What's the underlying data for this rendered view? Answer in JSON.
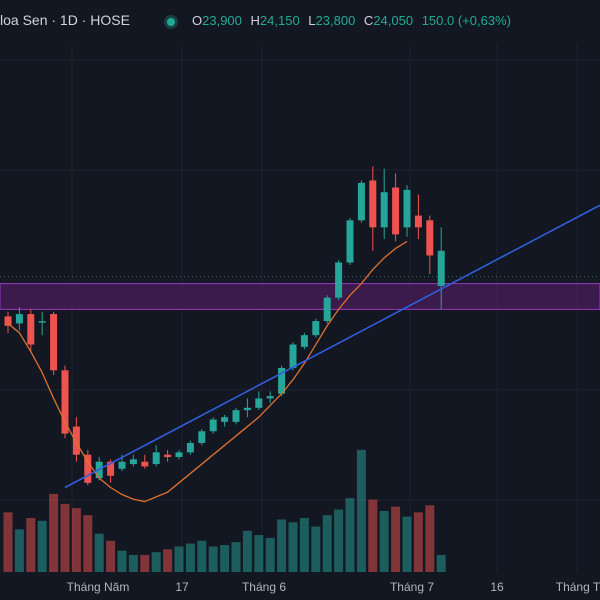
{
  "header": {
    "title": "loa Sen · 1D · HOSE",
    "status_icon": "live-dot-icon",
    "ohlc": {
      "o_label": "O",
      "o_value": "23,900",
      "h_label": "H",
      "h_value": "24,150",
      "l_label": "L",
      "l_value": "23,800",
      "c_label": "C",
      "c_value": "24,050",
      "change": "150.0 (+0,63%)"
    }
  },
  "colors": {
    "background": "#131722",
    "up": "#26a69a",
    "down": "#ef5350",
    "ma": "#e0702e",
    "trendline": "#2f5fe0",
    "zone_fill": "#5b1f6e",
    "zone_border": "#9b36c4"
  },
  "chart_data": {
    "type": "candlestick",
    "x_tick_labels": [
      "Tháng Năm",
      "17",
      "Tháng 6",
      "Tháng 7",
      "16",
      "Tháng T"
    ],
    "y_range": [
      22560,
      25120
    ],
    "ma_series": [
      23740,
      23700,
      23620,
      23530,
      23420,
      23320,
      23230,
      23150,
      23080,
      23040,
      23010,
      22990,
      22980,
      23000,
      23020,
      23060,
      23100,
      23140,
      23180,
      23220,
      23260,
      23300,
      23340,
      23390,
      23440,
      23500,
      23570,
      23650,
      23730,
      23800,
      23860,
      23910,
      23970,
      24020,
      24060,
      24090
    ],
    "candles": [
      {
        "o": 23770,
        "h": 23790,
        "l": 23700,
        "c": 23730,
        "v": 0.42
      },
      {
        "o": 23740,
        "h": 23810,
        "l": 23710,
        "c": 23780,
        "v": 0.3
      },
      {
        "o": 23780,
        "h": 23800,
        "l": 23620,
        "c": 23650,
        "v": 0.38
      },
      {
        "o": 23750,
        "h": 23790,
        "l": 23690,
        "c": 23750,
        "v": 0.36
      },
      {
        "o": 23780,
        "h": 23790,
        "l": 23520,
        "c": 23540,
        "v": 0.55
      },
      {
        "o": 23540,
        "h": 23560,
        "l": 23250,
        "c": 23270,
        "v": 0.48
      },
      {
        "o": 23300,
        "h": 23340,
        "l": 23150,
        "c": 23180,
        "v": 0.45
      },
      {
        "o": 23180,
        "h": 23200,
        "l": 23050,
        "c": 23060,
        "v": 0.4
      },
      {
        "o": 23080,
        "h": 23170,
        "l": 23070,
        "c": 23150,
        "v": 0.27
      },
      {
        "o": 23150,
        "h": 23160,
        "l": 23060,
        "c": 23090,
        "v": 0.22
      },
      {
        "o": 23120,
        "h": 23180,
        "l": 23110,
        "c": 23150,
        "v": 0.15
      },
      {
        "o": 23140,
        "h": 23180,
        "l": 23130,
        "c": 23160,
        "v": 0.12
      },
      {
        "o": 23150,
        "h": 23180,
        "l": 23120,
        "c": 23130,
        "v": 0.12
      },
      {
        "o": 23140,
        "h": 23220,
        "l": 23130,
        "c": 23190,
        "v": 0.14
      },
      {
        "o": 23180,
        "h": 23200,
        "l": 23150,
        "c": 23170,
        "v": 0.16
      },
      {
        "o": 23170,
        "h": 23200,
        "l": 23160,
        "c": 23190,
        "v": 0.18
      },
      {
        "o": 23190,
        "h": 23240,
        "l": 23180,
        "c": 23230,
        "v": 0.2
      },
      {
        "o": 23230,
        "h": 23290,
        "l": 23220,
        "c": 23280,
        "v": 0.22
      },
      {
        "o": 23280,
        "h": 23340,
        "l": 23270,
        "c": 23330,
        "v": 0.18
      },
      {
        "o": 23320,
        "h": 23350,
        "l": 23300,
        "c": 23340,
        "v": 0.19
      },
      {
        "o": 23320,
        "h": 23380,
        "l": 23310,
        "c": 23370,
        "v": 0.21
      },
      {
        "o": 23370,
        "h": 23420,
        "l": 23340,
        "c": 23380,
        "v": 0.29
      },
      {
        "o": 23380,
        "h": 23450,
        "l": 23370,
        "c": 23420,
        "v": 0.26
      },
      {
        "o": 23420,
        "h": 23450,
        "l": 23400,
        "c": 23430,
        "v": 0.24
      },
      {
        "o": 23440,
        "h": 23560,
        "l": 23430,
        "c": 23550,
        "v": 0.37
      },
      {
        "o": 23550,
        "h": 23660,
        "l": 23540,
        "c": 23650,
        "v": 0.35
      },
      {
        "o": 23640,
        "h": 23700,
        "l": 23630,
        "c": 23690,
        "v": 0.38
      },
      {
        "o": 23690,
        "h": 23760,
        "l": 23680,
        "c": 23750,
        "v": 0.32
      },
      {
        "o": 23750,
        "h": 23860,
        "l": 23740,
        "c": 23850,
        "v": 0.4
      },
      {
        "o": 23850,
        "h": 24010,
        "l": 23840,
        "c": 24000,
        "v": 0.44
      },
      {
        "o": 24000,
        "h": 24190,
        "l": 23990,
        "c": 24180,
        "v": 0.52
      },
      {
        "o": 24180,
        "h": 24350,
        "l": 24170,
        "c": 24340,
        "v": 0.86
      },
      {
        "o": 24350,
        "h": 24410,
        "l": 24050,
        "c": 24150,
        "v": 0.51
      },
      {
        "o": 24150,
        "h": 24400,
        "l": 24100,
        "c": 24300,
        "v": 0.43
      },
      {
        "o": 24320,
        "h": 24380,
        "l": 24090,
        "c": 24120,
        "v": 0.46
      },
      {
        "o": 24150,
        "h": 24330,
        "l": 24110,
        "c": 24310,
        "v": 0.39
      },
      {
        "o": 24200,
        "h": 24290,
        "l": 24100,
        "c": 24150,
        "v": 0.42
      },
      {
        "o": 24180,
        "h": 24200,
        "l": 23950,
        "c": 24030,
        "v": 0.47
      },
      {
        "o": 23900,
        "h": 24150,
        "l": 23800,
        "c": 24050,
        "v": 0.12
      }
    ],
    "support_zone": [
      23800,
      23910
    ],
    "dotted_level": 23940
  }
}
